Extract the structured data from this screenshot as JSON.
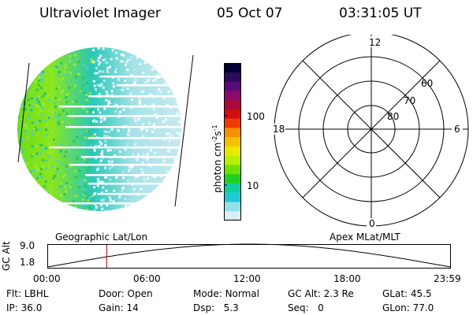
{
  "header": {
    "instrument": "Ultraviolet Imager",
    "date": "05 Oct 07",
    "time": "03:31:05 UT"
  },
  "colorbar": {
    "unit_label": "photon cm",
    "unit_exp1": "-2",
    "unit_mid": "s",
    "unit_exp2": "-1",
    "tick_100": "100",
    "tick_10": "10",
    "colors": [
      "#000033",
      "#2b0a57",
      "#5a0a7a",
      "#8a0a6a",
      "#a80a3a",
      "#d01010",
      "#ef3a00",
      "#f59000",
      "#f5c000",
      "#e8e800",
      "#b8f000",
      "#70e000",
      "#20d020",
      "#10d0a0",
      "#20c8d8",
      "#90e0ea",
      "#d8f0f4"
    ]
  },
  "polar_plot": {
    "mlt_labels": {
      "top": "12",
      "left": "18",
      "right": "6",
      "bottom": "0"
    },
    "lat_labels": [
      "80",
      "70",
      "60"
    ]
  },
  "timeline": {
    "top_left_label": "Geographic Lat/Lon",
    "top_right_label": "Apex MLat/MLT",
    "y_axis_title": "GC Alt",
    "y_max": "9.0",
    "y_min": "1.8",
    "x_ticks": [
      "00:00",
      "06:00",
      "12:00",
      "18:00",
      "23:59"
    ],
    "marker_time_hours": 3.52
  },
  "info": {
    "flt_label": "Flt:",
    "flt_value": "LBHL",
    "ip_label": "IP:",
    "ip_value": "36.0",
    "door_label": "Door:",
    "door_value": "Open",
    "gain_label": "Gain:",
    "gain_value": "14",
    "mode_label": "Mode:",
    "mode_value": "Normal",
    "dsp_label": "Dsp:",
    "dsp_value": "5.3",
    "gcalt_label": "GC Alt:",
    "gcalt_value": "2.3 Re",
    "seq_label": "Seq:",
    "seq_value": "0",
    "glat_label": "GLat:",
    "glat_value": "45.5",
    "glon_label": "GLon:",
    "glon_value": "77.0"
  },
  "colors": {
    "marker": "#c00000"
  }
}
